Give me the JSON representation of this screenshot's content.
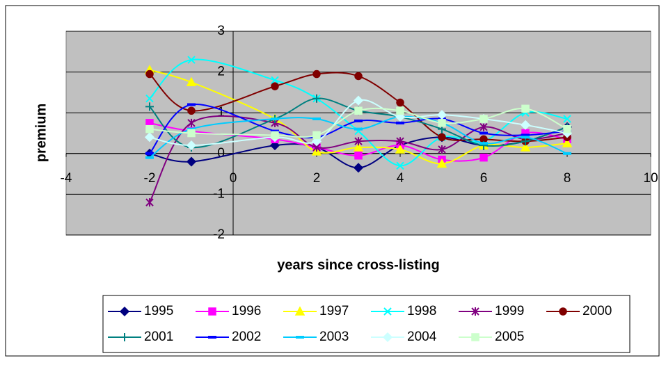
{
  "chart_data": {
    "type": "line",
    "smooth": true,
    "grid": true,
    "plot_background": "#c0c0c0",
    "x_label": "years since cross-listing",
    "y_label": "premium",
    "xlim": [
      -4,
      10
    ],
    "xticks": [
      -4,
      -2,
      0,
      2,
      4,
      6,
      8,
      10
    ],
    "ylim": [
      -2,
      3
    ],
    "yticks": [
      -2,
      -1,
      0,
      1,
      2,
      3
    ],
    "x": [
      -2,
      -1,
      1,
      2,
      3,
      4,
      5,
      6,
      7,
      8
    ],
    "series": [
      {
        "name": "1995",
        "color": "#000080",
        "marker": "diamond",
        "values": [
          0.0,
          -0.2,
          0.2,
          0.15,
          -0.35,
          0.2,
          0.4,
          0.2,
          0.3,
          0.65
        ]
      },
      {
        "name": "1996",
        "color": "#ff00ff",
        "marker": "square",
        "values": [
          0.75,
          0.55,
          0.35,
          0.15,
          -0.05,
          0.2,
          -0.15,
          -0.1,
          0.5,
          0.35
        ]
      },
      {
        "name": "1997",
        "color": "#ffff00",
        "marker": "triangle",
        "values": [
          2.05,
          1.75,
          0.85,
          0.05,
          0.15,
          0.1,
          -0.25,
          0.2,
          0.15,
          0.25
        ]
      },
      {
        "name": "1998",
        "color": "#00ffff",
        "marker": "x",
        "values": [
          1.35,
          2.3,
          1.8,
          1.35,
          0.55,
          -0.3,
          0.4,
          0.3,
          1.0,
          0.85
        ]
      },
      {
        "name": "1999",
        "color": "#800080",
        "marker": "star",
        "values": [
          -1.2,
          0.75,
          0.75,
          0.15,
          0.3,
          0.3,
          0.1,
          0.65,
          0.35,
          0.5
        ]
      },
      {
        "name": "2000",
        "color": "#800000",
        "marker": "circle",
        "values": [
          1.95,
          1.05,
          1.65,
          1.95,
          1.9,
          1.25,
          0.4,
          0.35,
          0.3,
          0.4
        ]
      },
      {
        "name": "2001",
        "color": "#008080",
        "marker": "plus",
        "values": [
          1.15,
          0.15,
          0.85,
          1.35,
          1.05,
          0.9,
          0.6,
          0.2,
          0.3,
          0.65
        ]
      },
      {
        "name": "2002",
        "color": "#0000ff",
        "marker": "dash",
        "values": [
          0.0,
          1.2,
          0.55,
          0.4,
          0.8,
          0.75,
          0.85,
          0.5,
          0.45,
          0.55
        ]
      },
      {
        "name": "2003",
        "color": "#00ccff",
        "marker": "dash",
        "values": [
          -0.1,
          0.6,
          0.85,
          0.85,
          0.6,
          0.9,
          0.75,
          0.25,
          0.4,
          0.0
        ]
      },
      {
        "name": "2004",
        "color": "#ccffff",
        "marker": "diamond",
        "values": [
          0.4,
          0.2,
          0.4,
          0.3,
          1.3,
          0.9,
          0.95,
          0.85,
          0.7,
          0.5
        ]
      },
      {
        "name": "2005",
        "color": "#ccffcc",
        "marker": "square",
        "values": [
          0.6,
          0.5,
          0.45,
          0.45,
          1.05,
          1.05,
          0.75,
          0.85,
          1.1,
          0.6
        ]
      }
    ]
  }
}
